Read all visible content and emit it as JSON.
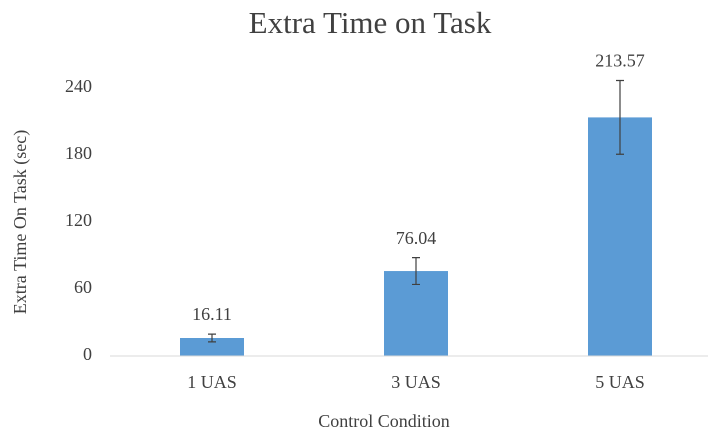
{
  "chart_data": {
    "type": "bar",
    "title": "Extra Time on Task",
    "x_label": "Control Condition",
    "y_label": "Extra Time On Task (sec)",
    "categories": [
      "1 UAS",
      "3 UAS",
      "5 UAS"
    ],
    "values": [
      16.11,
      76.04,
      213.57
    ],
    "errors": [
      3.5,
      12,
      33
    ],
    "color": "#5b9bd5",
    "ylim": [
      0,
      256
    ],
    "yticks": [
      0,
      60,
      120,
      180,
      240
    ],
    "grid": false
  }
}
